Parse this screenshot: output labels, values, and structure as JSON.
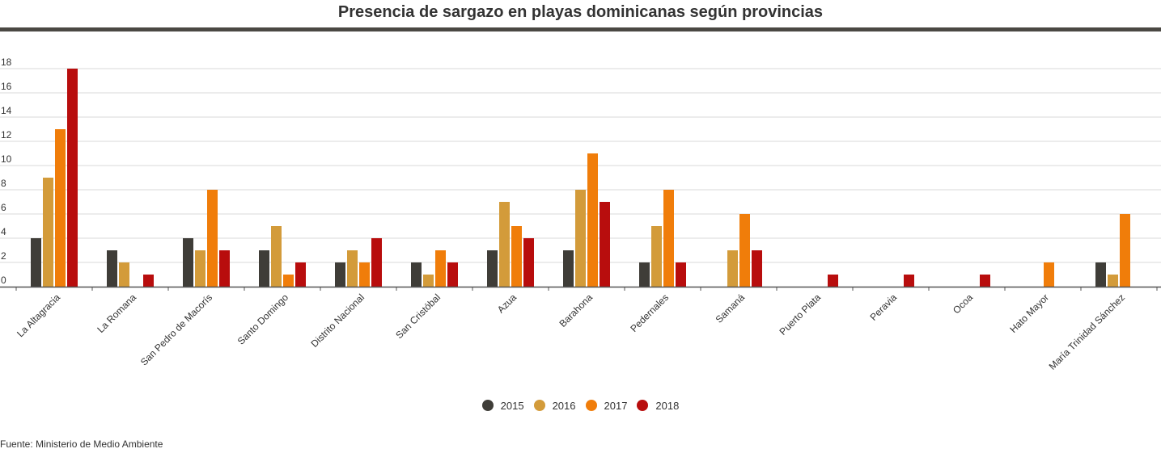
{
  "chart_data": {
    "type": "bar",
    "title": "Presencia de sargazo en playas dominicanas según provincias",
    "xlabel": "",
    "ylabel": "",
    "ylim": [
      0,
      18
    ],
    "yticks": [
      0,
      2,
      4,
      6,
      8,
      10,
      12,
      14,
      16,
      18
    ],
    "grid": true,
    "legend_position": "bottom",
    "categories": [
      "La Altagracia",
      "La Romana",
      "San Pedro de Macorís",
      "Santo Domingo",
      "Distrito Nacional",
      "San Cristóbal",
      "Azua",
      "Barahona",
      "Pedernales",
      "Samaná",
      "Puerto Plata",
      "Peravia",
      "Ocoa",
      "Hato Mayor",
      "María Trinidad Sánchez"
    ],
    "series": [
      {
        "name": "2015",
        "color": "#3f3d38",
        "values": [
          4,
          3,
          4,
          3,
          2,
          2,
          3,
          3,
          2,
          0,
          0,
          0,
          0,
          0,
          2
        ]
      },
      {
        "name": "2016",
        "color": "#d39b3a",
        "values": [
          9,
          2,
          3,
          5,
          3,
          1,
          7,
          8,
          5,
          3,
          0,
          0,
          0,
          0,
          1
        ]
      },
      {
        "name": "2017",
        "color": "#f07d0a",
        "values": [
          13,
          0,
          8,
          1,
          2,
          3,
          5,
          11,
          8,
          6,
          0,
          0,
          0,
          2,
          6
        ]
      },
      {
        "name": "2018",
        "color": "#b80d0d",
        "values": [
          18,
          1,
          3,
          2,
          4,
          2,
          4,
          7,
          2,
          3,
          1,
          1,
          1,
          0,
          0
        ]
      }
    ]
  },
  "source": "Fuente: Ministerio de Medio Ambiente"
}
